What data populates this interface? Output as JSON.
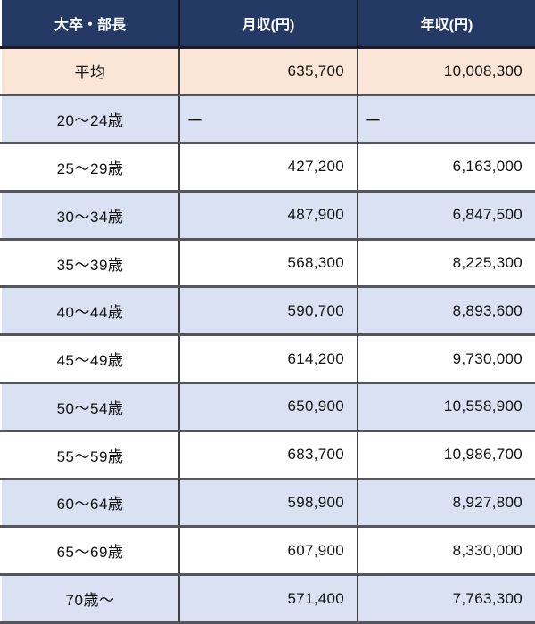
{
  "colors": {
    "header_bg": "#243a64",
    "header_text": "#ffffff",
    "header_divider": "#15151d",
    "header_bottom_border": "#1c1c24",
    "highlight_bg": "#fbe5d6",
    "alt_bg": "#d9e1f2",
    "row_bg": "#ffffff",
    "cell_divider": "#3f4045",
    "border": "#55565c",
    "text": "#111111"
  },
  "chart_data": {
    "type": "table",
    "no_data_marker": "ー",
    "columns": [
      "大卒・部長",
      "月収(円)",
      "年収(円)"
    ],
    "rows": [
      {
        "label": "平均",
        "monthly": "635,700",
        "annual": "10,008,300",
        "monthly_value": 635700,
        "annual_value": 10008300
      },
      {
        "label": "20〜24歳",
        "monthly": "ー",
        "annual": "ー",
        "monthly_value": null,
        "annual_value": null
      },
      {
        "label": "25〜29歳",
        "monthly": "427,200",
        "annual": "6,163,000",
        "monthly_value": 427200,
        "annual_value": 6163000
      },
      {
        "label": "30〜34歳",
        "monthly": "487,900",
        "annual": "6,847,500",
        "monthly_value": 487900,
        "annual_value": 6847500
      },
      {
        "label": "35〜39歳",
        "monthly": "568,300",
        "annual": "8,225,300",
        "monthly_value": 568300,
        "annual_value": 8225300
      },
      {
        "label": "40〜44歳",
        "monthly": "590,700",
        "annual": "8,893,600",
        "monthly_value": 590700,
        "annual_value": 8893600
      },
      {
        "label": "45〜49歳",
        "monthly": "614,200",
        "annual": "9,730,000",
        "monthly_value": 614200,
        "annual_value": 9730000
      },
      {
        "label": "50〜54歳",
        "monthly": "650,900",
        "annual": "10,558,900",
        "monthly_value": 650900,
        "annual_value": 10558900
      },
      {
        "label": "55〜59歳",
        "monthly": "683,700",
        "annual": "10,986,700",
        "monthly_value": 683700,
        "annual_value": 10986700
      },
      {
        "label": "60〜64歳",
        "monthly": "598,900",
        "annual": "8,927,800",
        "monthly_value": 598900,
        "annual_value": 8927800
      },
      {
        "label": "65〜69歳",
        "monthly": "607,900",
        "annual": "8,330,000",
        "monthly_value": 607900,
        "annual_value": 8330000
      },
      {
        "label": "70歳〜",
        "monthly": "571,400",
        "annual": "7,763,300",
        "monthly_value": 571400,
        "annual_value": 7763300
      }
    ]
  }
}
